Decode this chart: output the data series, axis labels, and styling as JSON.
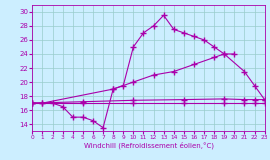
{
  "xlabel": "Windchill (Refroidissement éolien,°C)",
  "background_color": "#cceeff",
  "line_color": "#aa00aa",
  "grid_color": "#99cccc",
  "xmin": 0,
  "xmax": 23,
  "ymin": 13,
  "ymax": 31,
  "yticks": [
    14,
    16,
    18,
    20,
    22,
    24,
    26,
    28,
    30
  ],
  "xticks": [
    0,
    1,
    2,
    3,
    4,
    5,
    6,
    7,
    8,
    9,
    10,
    11,
    12,
    13,
    14,
    15,
    16,
    17,
    18,
    19,
    20,
    21,
    22,
    23
  ],
  "line1_x": [
    0,
    1,
    2,
    3,
    4,
    5,
    6,
    7,
    8,
    9,
    10,
    11,
    12,
    13,
    14,
    15,
    16,
    17,
    18,
    19,
    20
  ],
  "line1_y": [
    17.0,
    17.0,
    17.0,
    16.5,
    15.0,
    15.0,
    14.5,
    13.5,
    19.0,
    19.5,
    25.0,
    27.0,
    28.0,
    29.5,
    27.5,
    27.0,
    26.5,
    26.0,
    25.0,
    24.0,
    24.0
  ],
  "line2_x": [
    0,
    1,
    8,
    10,
    12,
    14,
    16,
    18,
    19,
    21,
    22,
    23
  ],
  "line2_y": [
    17.0,
    17.0,
    19.0,
    20.0,
    21.0,
    21.5,
    22.5,
    23.5,
    24.0,
    21.5,
    19.5,
    17.5
  ],
  "line3_x": [
    0,
    5,
    10,
    15,
    19,
    21,
    22,
    23
  ],
  "line3_y": [
    17.0,
    17.2,
    17.4,
    17.5,
    17.6,
    17.5,
    17.5,
    17.5
  ],
  "line4_x": [
    0,
    5,
    10,
    15,
    19,
    21,
    22,
    23
  ],
  "line4_y": [
    17.0,
    17.0,
    17.0,
    17.0,
    17.0,
    17.0,
    17.0,
    17.0
  ]
}
